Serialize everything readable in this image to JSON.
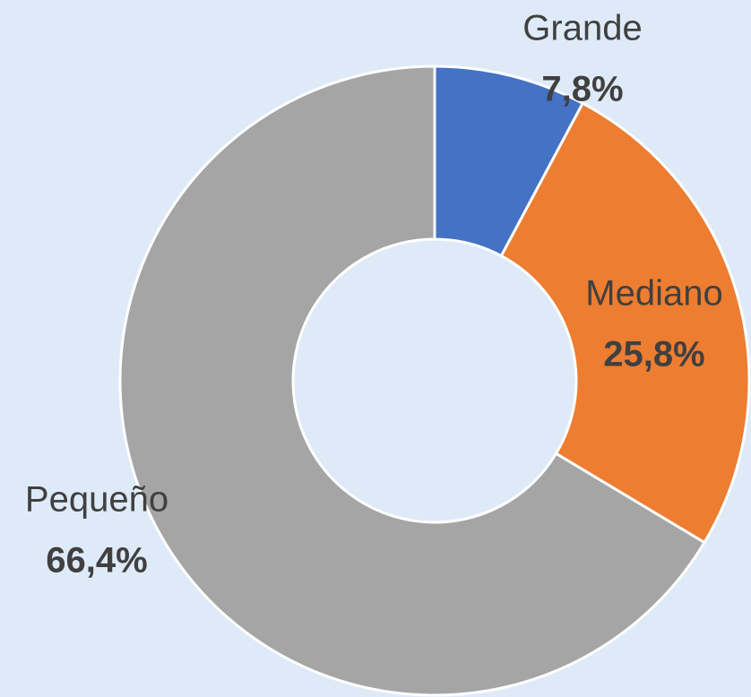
{
  "chart_data": {
    "type": "donut",
    "categories": [
      "Grande",
      "Mediano",
      "Pequeño"
    ],
    "values": [
      7.8,
      25.8,
      66.4
    ],
    "value_labels": [
      "7,8%",
      "25,8%",
      "66,4%"
    ],
    "colors": [
      "#4472c4",
      "#ed7d31",
      "#a5a5a5"
    ]
  }
}
